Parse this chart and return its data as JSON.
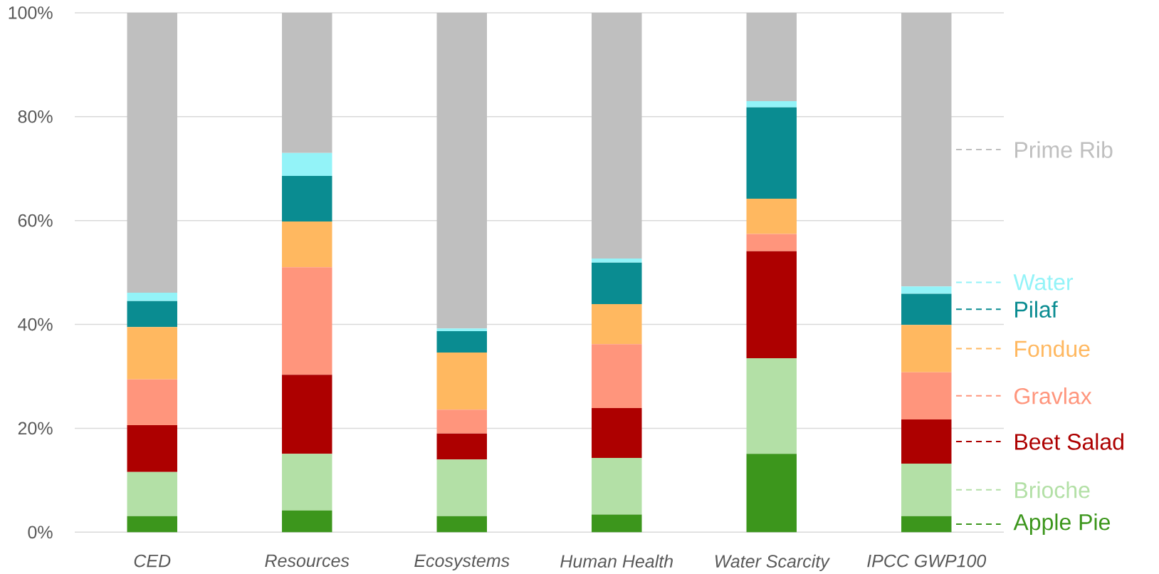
{
  "chart_data": {
    "type": "bar",
    "stacked": true,
    "categories": [
      "CED",
      "Resources",
      "Ecosystems",
      "Human Health",
      "Water Scarcity",
      "IPCC GWP100"
    ],
    "series": [
      {
        "name": "Apple Pie",
        "color": "#3c961c",
        "values": [
          3.1,
          4.2,
          3.1,
          3.4,
          15.1,
          3.1
        ]
      },
      {
        "name": "Brioche",
        "color": "#b3e0a6",
        "values": [
          8.5,
          10.9,
          10.9,
          10.9,
          18.4,
          10.1
        ]
      },
      {
        "name": "Beet Salad",
        "color": "#ad0000",
        "values": [
          9.0,
          15.2,
          5.0,
          9.6,
          20.6,
          8.5
        ]
      },
      {
        "name": "Gravlax",
        "color": "#ff957c",
        "values": [
          8.8,
          20.7,
          4.6,
          12.3,
          3.3,
          9.1
        ]
      },
      {
        "name": "Fondue",
        "color": "#ffb860",
        "values": [
          10.1,
          8.8,
          11.0,
          7.7,
          6.8,
          9.1
        ]
      },
      {
        "name": "Pilaf",
        "color": "#0a8c91",
        "values": [
          5.0,
          8.8,
          4.1,
          8.0,
          17.6,
          6.0
        ]
      },
      {
        "name": "Water",
        "color": "#93f3f8",
        "values": [
          1.6,
          4.4,
          0.5,
          0.8,
          1.2,
          1.4
        ]
      },
      {
        "name": "Prime Rib",
        "color": "#bfbfbf",
        "values": [
          53.9,
          27.0,
          60.8,
          47.3,
          17.0,
          52.7
        ]
      }
    ],
    "ylim": [
      0,
      100
    ],
    "yticks": [
      {
        "value": 0,
        "label": "0%"
      },
      {
        "value": 20,
        "label": "20%"
      },
      {
        "value": 40,
        "label": "40%"
      },
      {
        "value": 60,
        "label": "60%"
      },
      {
        "value": 80,
        "label": "80%"
      },
      {
        "value": 100,
        "label": "100%"
      }
    ],
    "grid": "y",
    "legend": "right"
  }
}
